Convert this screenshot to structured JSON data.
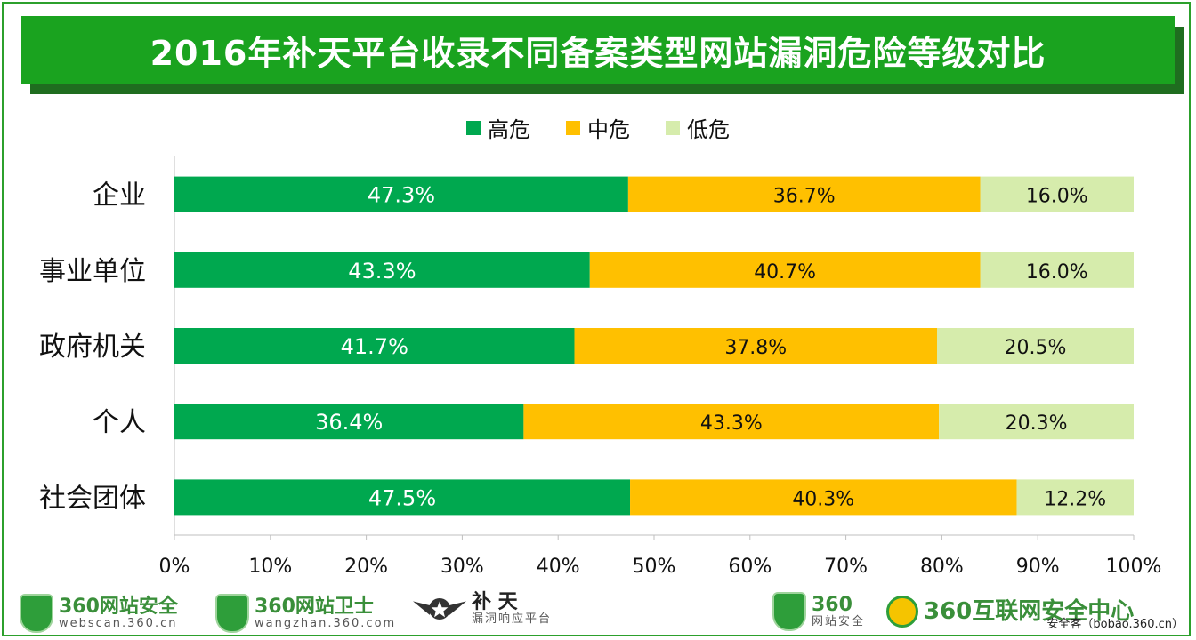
{
  "title": "2016年补天平台收录不同备案类型网站漏洞危险等级对比",
  "chart_data": {
    "type": "bar",
    "orientation": "horizontal",
    "stacked": true,
    "categories": [
      "企业",
      "事业单位",
      "政府机关",
      "个人",
      "社会团体"
    ],
    "series": [
      {
        "name": "高危",
        "color": "#00a84f",
        "values": [
          47.3,
          43.3,
          41.7,
          36.4,
          47.5
        ],
        "labels": [
          "47.3%",
          "43.3%",
          "41.7%",
          "36.4%",
          "47.5%"
        ]
      },
      {
        "name": "中危",
        "color": "#ffc000",
        "values": [
          36.7,
          40.7,
          37.8,
          43.3,
          40.3
        ],
        "labels": [
          "36.7%",
          "40.7%",
          "37.8%",
          "43.3%",
          "40.3%"
        ]
      },
      {
        "name": "低危",
        "color": "#d6ecac",
        "values": [
          16.0,
          16.0,
          20.5,
          20.3,
          12.2
        ],
        "labels": [
          "16.0%",
          "16.0%",
          "20.5%",
          "20.3%",
          "12.2%"
        ]
      }
    ],
    "xlim": [
      0,
      100
    ],
    "xticks": [
      "0%",
      "10%",
      "20%",
      "30%",
      "40%",
      "50%",
      "60%",
      "70%",
      "80%",
      "90%",
      "100%"
    ],
    "legend": "top"
  },
  "footer": {
    "logo1": {
      "main": "360网站安全",
      "sub": "webscan.360.cn"
    },
    "logo2": {
      "main": "360网站卫士",
      "sub": "wangzhan.360.com"
    },
    "logo3": {
      "main": "补 天",
      "sub": "漏洞响应平台"
    },
    "logo4": {
      "main": "360",
      "sub": "网站安全"
    },
    "logo5": {
      "main": "360互联网安全中心"
    },
    "copyright": "安全客（bobao.360.cn）"
  }
}
